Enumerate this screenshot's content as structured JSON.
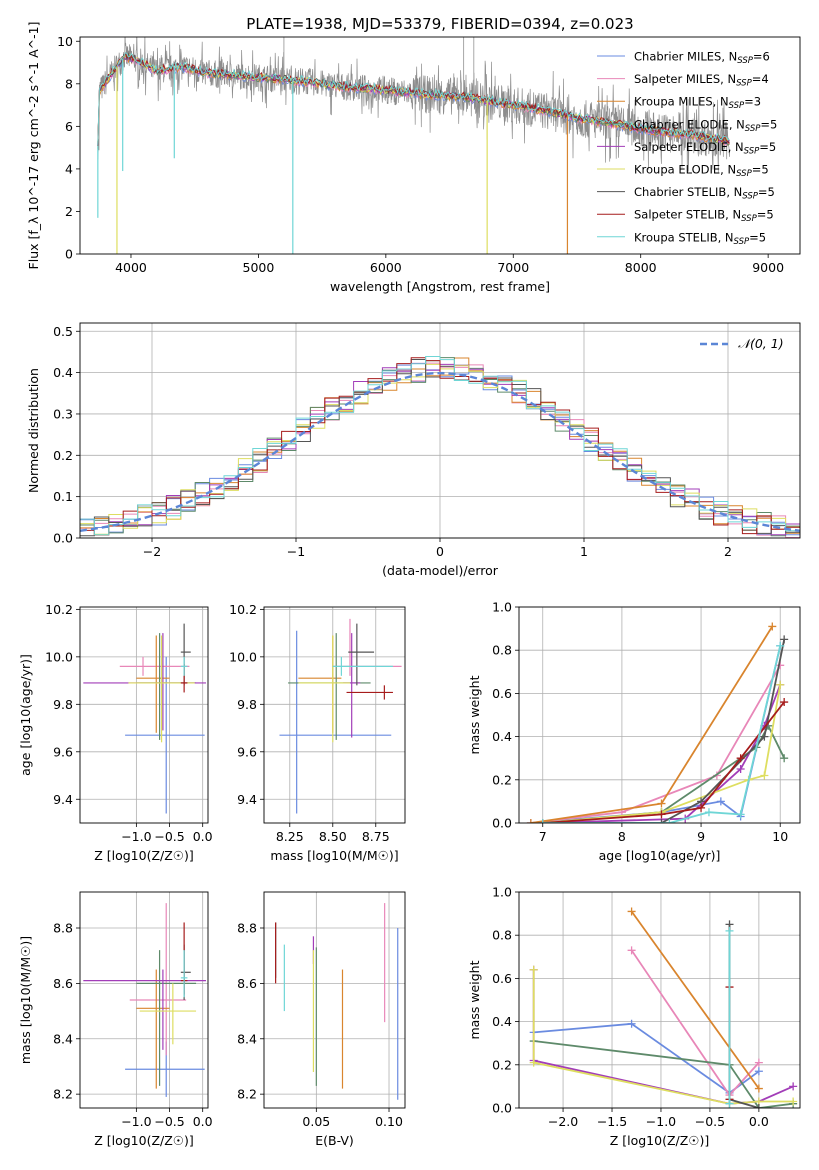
{
  "title": "PLATE=1938, MJD=53379, FIBERID=0394, z=0.023",
  "colors": {
    "chabrier_miles": "#6a8be0",
    "salpeter_miles": "#e887b8",
    "kroupa_miles": "#d9852e",
    "chabrier_elodie": "#5e8a6a",
    "salpeter_elodie": "#a23db8",
    "kroupa_elodie": "#dede60",
    "chabrier_stelib": "#555555",
    "salpeter_stelib": "#a61c1c",
    "kroupa_stelib": "#6fd6d6"
  },
  "chart_data": [
    {
      "id": "spectrum",
      "type": "line",
      "xlabel": "wavelength [Angstrom, rest frame]",
      "ylabel": "Flux [f_λ 10^-17 erg cm^-2 s^-1 A^-1]",
      "xlim": [
        3600,
        9250
      ],
      "ylim": [
        0,
        10.2
      ],
      "xticks": [
        4000,
        5000,
        6000,
        7000,
        8000,
        9000
      ],
      "yticks": [
        0,
        2,
        4,
        6,
        8,
        10
      ],
      "legend_position": "top-right",
      "legend": [
        {
          "label": "Chabrier MILES, N",
          "sub": "SSP",
          "tail": "=6",
          "color": "#6a8be0"
        },
        {
          "label": "Salpeter MILES, N",
          "sub": "SSP",
          "tail": "=4",
          "color": "#e887b8"
        },
        {
          "label": "Kroupa MILES, N",
          "sub": "SSP",
          "tail": "=3",
          "color": "#d9852e"
        },
        {
          "label": "Chabrier ELODIE, N",
          "sub": "SSP",
          "tail": "=5",
          "color": "#5e8a6a"
        },
        {
          "label": "Salpeter ELODIE, N",
          "sub": "SSP",
          "tail": "=5",
          "color": "#a23db8"
        },
        {
          "label": "Kroupa ELODIE, N",
          "sub": "SSP",
          "tail": "=5",
          "color": "#dede60"
        },
        {
          "label": "Chabrier STELIB, N",
          "sub": "SSP",
          "tail": "=5",
          "color": "#555555"
        },
        {
          "label": "Salpeter STELIB, N",
          "sub": "SSP",
          "tail": "=5",
          "color": "#a61c1c"
        },
        {
          "label": "Kroupa STELIB, N",
          "sub": "SSP",
          "tail": "=5",
          "color": "#6fd6d6"
        }
      ],
      "continuum": {
        "x": [
          3750,
          3850,
          3950,
          4050,
          4200,
          4400,
          4600,
          4800,
          5000,
          5200,
          5400,
          5600,
          5800,
          6000,
          6300,
          6600,
          6900,
          7200,
          7500,
          7800,
          8100,
          8400,
          8700,
          9000
        ],
        "y": [
          7.6,
          8.5,
          9.3,
          9.1,
          8.6,
          8.8,
          8.5,
          8.4,
          8.3,
          8.2,
          8.1,
          7.9,
          7.8,
          7.7,
          7.5,
          7.4,
          7.1,
          6.8,
          6.4,
          6.1,
          5.8,
          5.6,
          5.3,
          5.1
        ]
      },
      "dips": [
        {
          "x": 3740,
          "y": 1.7
        },
        {
          "x": 3890,
          "y": 0
        },
        {
          "x": 3935,
          "y": 3.9
        },
        {
          "x": 4340,
          "y": 4.5
        },
        {
          "x": 5270,
          "y": 0
        },
        {
          "x": 6795,
          "y": 0
        },
        {
          "x": 7425,
          "y": 0
        }
      ]
    },
    {
      "id": "residuals",
      "type": "step",
      "xlabel": "(data-model)/error",
      "ylabel": "Normed distribution",
      "xlim": [
        -2.5,
        2.5
      ],
      "ylim": [
        0,
        0.52
      ],
      "xticks": [
        -2,
        -1,
        0,
        1,
        2
      ],
      "yticks": [
        0.0,
        0.1,
        0.2,
        0.3,
        0.4,
        0.5
      ],
      "grid": true,
      "legend_position": "top-right",
      "reference_curve": {
        "label": "𝒩(0, 1)",
        "mu": 0,
        "sigma": 1,
        "color": "#5b86d6",
        "style": "dashed"
      },
      "bin_edges_start": -2.5,
      "bin_width": 0.1
    },
    {
      "id": "age_vs_Z",
      "type": "errorbar",
      "xlabel": "Z [log10(Z/Z☉)]",
      "ylabel": "age [log10(age/yr)]",
      "xlim": [
        -1.85,
        0.08
      ],
      "ylim": [
        9.3,
        10.21
      ],
      "xticks": [
        -1,
        -0.5,
        0
      ],
      "yticks": [
        9.4,
        9.6,
        9.8,
        10.0,
        10.2
      ],
      "grid": true,
      "points": [
        {
          "model": "chabrier_miles",
          "x": -0.55,
          "xerr": [
            0.62,
            0.58
          ],
          "y": 9.67,
          "yerr": [
            0.33,
            0.33
          ]
        },
        {
          "model": "salpeter_miles",
          "x": -0.9,
          "xerr": [
            0.35,
            0.7
          ],
          "y": 9.96,
          "yerr": [
            0.04,
            0.04
          ]
        },
        {
          "model": "kroupa_miles",
          "x": -0.7,
          "xerr": [
            0.3,
            0.2
          ],
          "y": 9.91,
          "yerr": [
            0.23,
            0.18
          ]
        },
        {
          "model": "chabrier_elodie",
          "x": -0.65,
          "xerr": [
            0.35,
            0.55
          ],
          "y": 9.89,
          "yerr": [
            0.24,
            0.21
          ]
        },
        {
          "model": "salpeter_elodie",
          "x": -0.6,
          "xerr": [
            1.2,
            0.65
          ],
          "y": 9.89,
          "yerr": [
            0.2,
            0.21
          ]
        },
        {
          "model": "kroupa_elodie",
          "x": -0.62,
          "xerr": [
            0.5,
            0.5
          ],
          "y": 9.89,
          "yerr": [
            0.25,
            0.2
          ]
        },
        {
          "model": "chabrier_stelib",
          "x": -0.28,
          "xerr": [
            0.05,
            0.1
          ],
          "y": 10.02,
          "yerr": [
            0.14,
            0.12
          ]
        },
        {
          "model": "salpeter_stelib",
          "x": -0.28,
          "xerr": [
            0.05,
            0.05
          ],
          "y": 9.89,
          "yerr": [
            0.04,
            0.08
          ]
        },
        {
          "model": "kroupa_stelib",
          "x": -0.28,
          "xerr": [
            0.05,
            0.05
          ],
          "y": 9.96,
          "yerr": [
            0.04,
            0.04
          ]
        }
      ]
    },
    {
      "id": "age_vs_mass",
      "type": "errorbar",
      "xlabel": "mass [log10(M/M☉)]",
      "ylabel": "",
      "xlim": [
        8.1,
        8.92
      ],
      "ylim": [
        9.3,
        10.21
      ],
      "xticks": [
        8.25,
        8.5,
        8.75
      ],
      "yticks": [
        9.4,
        9.6,
        9.8,
        10.0,
        10.2
      ],
      "grid": true,
      "points": [
        {
          "model": "chabrier_miles",
          "x": 8.29,
          "xerr": [
            0.1,
            0.55
          ],
          "y": 9.67,
          "yerr": [
            0.33,
            0.44
          ]
        },
        {
          "model": "salpeter_miles",
          "x": 8.6,
          "xerr": [
            0.1,
            0.3
          ],
          "y": 9.96,
          "yerr": [
            0.04,
            0.2
          ]
        },
        {
          "model": "kroupa_miles",
          "x": 8.5,
          "xerr": [
            0.2,
            0.05
          ],
          "y": 9.91,
          "yerr": [
            0.23,
            0.18
          ]
        },
        {
          "model": "chabrier_elodie",
          "x": 8.52,
          "xerr": [
            0.28,
            0.2
          ],
          "y": 9.89,
          "yerr": [
            0.24,
            0.21
          ]
        },
        {
          "model": "salpeter_elodie",
          "x": 8.61,
          "xerr": [
            0.05,
            0.05
          ],
          "y": 9.89,
          "yerr": [
            0.23,
            0.21
          ]
        },
        {
          "model": "kroupa_elodie",
          "x": 8.5,
          "xerr": [
            0.2,
            0.1
          ],
          "y": 9.89,
          "yerr": [
            0.25,
            0.2
          ]
        },
        {
          "model": "chabrier_stelib",
          "x": 8.64,
          "xerr": [
            0.05,
            0.1
          ],
          "y": 10.02,
          "yerr": [
            0.14,
            0.12
          ]
        },
        {
          "model": "salpeter_stelib",
          "x": 8.8,
          "xerr": [
            0.22,
            0.05
          ],
          "y": 9.85,
          "yerr": [
            0.03,
            0.03
          ]
        },
        {
          "model": "kroupa_stelib",
          "x": 8.55,
          "xerr": [
            0.05,
            0.3
          ],
          "y": 9.96,
          "yerr": [
            0.04,
            0.04
          ]
        }
      ]
    },
    {
      "id": "weight_vs_age",
      "type": "line",
      "xlabel": "age [log10(age/yr)]",
      "ylabel": "mass weight",
      "xlim": [
        6.7,
        10.25
      ],
      "ylim": [
        0,
        1.0
      ],
      "xticks": [
        7,
        8,
        9,
        10
      ],
      "yticks": [
        0.0,
        0.2,
        0.4,
        0.6,
        0.8,
        1.0
      ],
      "grid": true,
      "series": [
        {
          "model": "chabrier_miles",
          "x": [
            6.85,
            8.5,
            9.25,
            9.5,
            10.0
          ],
          "y": [
            0.0,
            0.05,
            0.1,
            0.03,
            0.82
          ]
        },
        {
          "model": "salpeter_miles",
          "x": [
            6.85,
            8.0,
            9.2,
            10.0
          ],
          "y": [
            0.0,
            0.05,
            0.22,
            0.73
          ]
        },
        {
          "model": "kroupa_miles",
          "x": [
            6.85,
            8.5,
            9.9
          ],
          "y": [
            0.0,
            0.09,
            0.91
          ]
        },
        {
          "model": "chabrier_elodie",
          "x": [
            7.0,
            8.5,
            9.7,
            9.85,
            10.05
          ],
          "y": [
            0.0,
            0.05,
            0.35,
            0.45,
            0.3
          ]
        },
        {
          "model": "salpeter_elodie",
          "x": [
            7.0,
            8.8,
            9.5,
            9.8,
            10.0
          ],
          "y": [
            0.0,
            0.02,
            0.25,
            0.45,
            0.64
          ]
        },
        {
          "model": "kroupa_elodie",
          "x": [
            7.0,
            8.5,
            9.6,
            9.8,
            10.0
          ],
          "y": [
            0.0,
            0.05,
            0.2,
            0.22,
            0.64
          ]
        },
        {
          "model": "chabrier_stelib",
          "x": [
            7.0,
            8.5,
            9.0,
            9.8,
            10.05
          ],
          "y": [
            0.0,
            0.0,
            0.1,
            0.4,
            0.85
          ]
        },
        {
          "model": "salpeter_stelib",
          "x": [
            7.0,
            8.5,
            9.0,
            9.5,
            10.05
          ],
          "y": [
            0.0,
            0.04,
            0.07,
            0.3,
            0.56
          ]
        },
        {
          "model": "kroupa_stelib",
          "x": [
            7.0,
            8.6,
            9.1,
            9.5,
            10.0
          ],
          "y": [
            0.0,
            0.0,
            0.05,
            0.04,
            0.82
          ]
        }
      ]
    },
    {
      "id": "mass_vs_Z",
      "type": "errorbar",
      "xlabel": "Z [log10(Z/Z☉)]",
      "ylabel": "mass [log10(M/M☉)]",
      "xlim": [
        -1.85,
        0.08
      ],
      "ylim": [
        8.15,
        8.93
      ],
      "xticks": [
        -1,
        -0.5,
        0
      ],
      "yticks": [
        8.2,
        8.4,
        8.6,
        8.8
      ],
      "grid": true,
      "points": [
        {
          "model": "chabrier_miles",
          "x": -0.55,
          "xerr": [
            0.62,
            0.58
          ],
          "y": 8.29,
          "yerr": [
            0.1,
            0.1
          ]
        },
        {
          "model": "salpeter_miles",
          "x": -0.55,
          "xerr": [
            0.55,
            0.3
          ],
          "y": 8.54,
          "yerr": [
            0.2,
            0.35
          ]
        },
        {
          "model": "kroupa_miles",
          "x": -0.7,
          "xerr": [
            0.3,
            0.2
          ],
          "y": 8.51,
          "yerr": [
            0.29,
            0.14
          ]
        },
        {
          "model": "chabrier_elodie",
          "x": -0.65,
          "xerr": [
            0.35,
            0.55
          ],
          "y": 8.6,
          "yerr": [
            0.37,
            0.12
          ]
        },
        {
          "model": "salpeter_elodie",
          "x": -0.6,
          "xerr": [
            1.2,
            0.65
          ],
          "y": 8.61,
          "yerr": [
            0.25,
            0.04
          ]
        },
        {
          "model": "kroupa_elodie",
          "x": -0.45,
          "xerr": [
            0.5,
            0.35
          ],
          "y": 8.5,
          "yerr": [
            0.12,
            0.1
          ]
        },
        {
          "model": "chabrier_stelib",
          "x": -0.28,
          "xerr": [
            0.05,
            0.1
          ],
          "y": 8.64,
          "yerr": [
            0.1,
            0.1
          ]
        },
        {
          "model": "salpeter_stelib",
          "x": -0.28,
          "xerr": [
            0.05,
            0.05
          ],
          "y": 8.61,
          "yerr": [
            0.05,
            0.21
          ]
        },
        {
          "model": "kroupa_stelib",
          "x": -0.28,
          "xerr": [
            0.05,
            0.05
          ],
          "y": 8.62,
          "yerr": [
            0.07,
            0.1
          ]
        }
      ]
    },
    {
      "id": "mass_vs_ebv",
      "type": "errorbar",
      "xlabel": "E(B-V)",
      "ylabel": "",
      "xlim": [
        0.014,
        0.111
      ],
      "ylim": [
        8.15,
        8.93
      ],
      "xticks": [
        0.05,
        0.1
      ],
      "yticks": [
        8.2,
        8.4,
        8.6,
        8.8
      ],
      "grid": true,
      "points": [
        {
          "model": "chabrier_miles",
          "x": 0.106,
          "y": 8.49,
          "yerr": [
            0.31,
            0.31
          ]
        },
        {
          "model": "salpeter_miles",
          "x": 0.097,
          "y": 8.68,
          "yerr": [
            0.22,
            0.21
          ]
        },
        {
          "model": "kroupa_miles",
          "x": 0.068,
          "y": 8.44,
          "yerr": [
            0.22,
            0.21
          ]
        },
        {
          "model": "chabrier_elodie",
          "x": 0.05,
          "y": 8.48,
          "yerr": [
            0.25,
            0.25
          ]
        },
        {
          "model": "salpeter_elodie",
          "x": 0.048,
          "y": 8.72,
          "yerr": [
            0.05,
            0.05
          ]
        },
        {
          "model": "kroupa_elodie",
          "x": 0.048,
          "y": 8.5,
          "yerr": [
            0.22,
            0.22
          ]
        },
        {
          "model": "chabrier_stelib",
          "x": 0.022,
          "y": 8.72,
          "yerr": [
            0.1,
            0.1
          ]
        },
        {
          "model": "salpeter_stelib",
          "x": 0.022,
          "y": 8.71,
          "yerr": [
            0.11,
            0.11
          ]
        },
        {
          "model": "kroupa_stelib",
          "x": 0.028,
          "y": 8.62,
          "yerr": [
            0.12,
            0.12
          ]
        }
      ]
    },
    {
      "id": "weight_vs_Z",
      "type": "line",
      "xlabel": "Z [log10(Z/Z☉)]",
      "ylabel": "mass weight",
      "xlim": [
        -2.45,
        0.42
      ],
      "ylim": [
        0,
        1.0
      ],
      "xticks": [
        -2.0,
        -1.5,
        -1.0,
        -0.5,
        0.0
      ],
      "yticks": [
        0.0,
        0.2,
        0.4,
        0.6,
        0.8,
        1.0
      ],
      "grid": true,
      "series": [
        {
          "model": "chabrier_miles",
          "x": [
            -2.3,
            -1.3,
            -0.3,
            0.0
          ],
          "y": [
            0.35,
            0.39,
            0.07,
            0.17
          ]
        },
        {
          "model": "salpeter_miles",
          "x": [
            -1.3,
            -0.3,
            0.0
          ],
          "y": [
            0.73,
            0.06,
            0.21
          ]
        },
        {
          "model": "kroupa_miles",
          "x": [
            -1.3,
            0.0
          ],
          "y": [
            0.91,
            0.09
          ]
        },
        {
          "model": "chabrier_elodie",
          "x": [
            -2.3,
            -0.3,
            0.0,
            0.35
          ],
          "y": [
            0.31,
            0.2,
            0.0,
            0.02
          ]
        },
        {
          "model": "salpeter_elodie",
          "x": [
            -2.3,
            -2.3,
            -0.3,
            0.0,
            0.35
          ],
          "y": [
            0.64,
            0.22,
            0.02,
            0.03,
            0.1
          ]
        },
        {
          "model": "kroupa_elodie",
          "x": [
            -2.3,
            -2.3,
            -0.3,
            0.0,
            0.35
          ],
          "y": [
            0.64,
            0.21,
            0.02,
            0.03,
            0.03
          ]
        },
        {
          "model": "chabrier_stelib",
          "x": [
            -0.3,
            -0.3,
            0.0
          ],
          "y": [
            0.85,
            0.04,
            0.0
          ]
        },
        {
          "model": "salpeter_stelib",
          "x": [
            -0.3,
            -0.3
          ],
          "y": [
            0.56,
            0.04
          ]
        },
        {
          "model": "kroupa_stelib",
          "x": [
            -0.3,
            -0.3
          ],
          "y": [
            0.82,
            0.02
          ]
        }
      ]
    }
  ]
}
